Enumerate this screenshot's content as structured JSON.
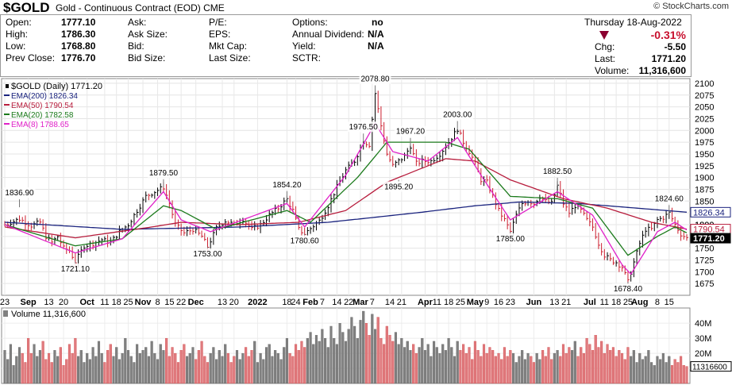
{
  "header": {
    "symbol": "$GOLD",
    "subtitle": "Gold - Continuous Contract (EOD)  CME",
    "brand": "© StockCharts.com"
  },
  "quote": {
    "open_label": "Open:",
    "open": "1777.10",
    "high_label": "High:",
    "high": "1786.30",
    "low_label": "Low:",
    "low": "1768.80",
    "prev_label": "Prev Close:",
    "prev": "1776.70",
    "ask_label": "Ask:",
    "asksize_label": "Ask Size:",
    "bid_label": "Bid:",
    "bidsize_label": "Bid Size:",
    "pe_label": "P/E:",
    "eps_label": "EPS:",
    "mktcap_label": "Mkt Cap:",
    "lastsize_label": "Last Size:",
    "options_label": "Options:",
    "options": "no",
    "div_label": "Annual Dividend:",
    "div": "N/A",
    "yield_label": "Yield:",
    "yield": "N/A",
    "sctr_label": "SCTR:",
    "date": "Thursday  18-Aug-2022",
    "pct": "-0.31%",
    "chg_label": "Chg:",
    "chg": "-5.50",
    "last_label": "Last:",
    "last": "1771.20",
    "vol_label": "Volume:",
    "vol": "11,316,600"
  },
  "chart_data": {
    "type": "line",
    "legend": [
      {
        "text": "$GOLD (Daily) 1771.20",
        "color": "#000000"
      },
      {
        "text": "EMA(200) 1826.34",
        "color": "#1a237e"
      },
      {
        "text": "EMA(50) 1790.54",
        "color": "#b71c3c"
      },
      {
        "text": "EMA(20) 1782.58",
        "color": "#1b7a1b"
      },
      {
        "text": "EMA(8) 1788.65",
        "color": "#e020c8"
      }
    ],
    "ylim": [
      1650,
      2110
    ],
    "yticks": [
      1675,
      1700,
      1725,
      1750,
      1775,
      1800,
      1825,
      1850,
      1875,
      1900,
      1925,
      1950,
      1975,
      2000,
      2025,
      2050,
      2075,
      2100
    ],
    "price_path": [
      [
        0,
        1800
      ],
      [
        5,
        1812
      ],
      [
        9,
        1798
      ],
      [
        12,
        1805
      ],
      [
        14,
        1775
      ],
      [
        16,
        1762
      ],
      [
        18,
        1775
      ],
      [
        20,
        1750
      ],
      [
        22,
        1745
      ],
      [
        24,
        1721.1
      ],
      [
        27,
        1755
      ],
      [
        30,
        1760
      ],
      [
        33,
        1768
      ],
      [
        36,
        1762
      ],
      [
        39,
        1785
      ],
      [
        42,
        1800
      ],
      [
        45,
        1830
      ],
      [
        48,
        1860
      ],
      [
        51,
        1870
      ],
      [
        54,
        1879.5
      ],
      [
        56,
        1845
      ],
      [
        58,
        1800
      ],
      [
        61,
        1782
      ],
      [
        64,
        1790
      ],
      [
        67,
        1775
      ],
      [
        69,
        1753
      ],
      [
        72,
        1792
      ],
      [
        75,
        1808
      ],
      [
        78,
        1800
      ],
      [
        81,
        1812
      ],
      [
        84,
        1790
      ],
      [
        87,
        1800
      ],
      [
        90,
        1820
      ],
      [
        93,
        1835
      ],
      [
        96,
        1854.2
      ],
      [
        98,
        1830
      ],
      [
        100,
        1790
      ],
      [
        102,
        1780.6
      ],
      [
        104,
        1792
      ],
      [
        107,
        1808
      ],
      [
        110,
        1840
      ],
      [
        113,
        1880
      ],
      [
        116,
        1915
      ],
      [
        119,
        1935
      ],
      [
        122,
        1976.5
      ],
      [
        124,
        1970
      ],
      [
        126,
        2078.8
      ],
      [
        128,
        2010
      ],
      [
        130,
        1950
      ],
      [
        132,
        1925
      ],
      [
        134,
        1935
      ],
      [
        136,
        1945
      ],
      [
        138,
        1967.2
      ],
      [
        140,
        1930
      ],
      [
        142,
        1935
      ],
      [
        145,
        1935
      ],
      [
        148,
        1950
      ],
      [
        151,
        1975
      ],
      [
        154,
        2003
      ],
      [
        156,
        1975
      ],
      [
        158,
        1955
      ],
      [
        160,
        1930
      ],
      [
        162,
        1895
      ],
      [
        164,
        1890
      ],
      [
        166,
        1860
      ],
      [
        168,
        1830
      ],
      [
        170,
        1810
      ],
      [
        172,
        1785
      ],
      [
        174,
        1820
      ],
      [
        176,
        1845
      ],
      [
        178,
        1850
      ],
      [
        180,
        1845
      ],
      [
        182,
        1860
      ],
      [
        184,
        1850
      ],
      [
        186,
        1845
      ],
      [
        188,
        1882.5
      ],
      [
        190,
        1845
      ],
      [
        192,
        1825
      ],
      [
        194,
        1840
      ],
      [
        196,
        1830
      ],
      [
        198,
        1810
      ],
      [
        200,
        1795
      ],
      [
        202,
        1760
      ],
      [
        204,
        1735
      ],
      [
        206,
        1725
      ],
      [
        208,
        1720
      ],
      [
        210,
        1710
      ],
      [
        212,
        1678.4
      ],
      [
        214,
        1720
      ],
      [
        216,
        1760
      ],
      [
        218,
        1790
      ],
      [
        220,
        1790
      ],
      [
        222,
        1810
      ],
      [
        224,
        1815
      ],
      [
        226,
        1824.6
      ],
      [
        228,
        1800
      ],
      [
        230,
        1780
      ],
      [
        232,
        1771.2
      ]
    ],
    "ema200": [
      [
        0,
        1805
      ],
      [
        40,
        1790
      ],
      [
        80,
        1795
      ],
      [
        110,
        1805
      ],
      [
        140,
        1825
      ],
      [
        160,
        1840
      ],
      [
        175,
        1848
      ],
      [
        195,
        1845
      ],
      [
        215,
        1835
      ],
      [
        232,
        1826.34
      ]
    ],
    "ema50": [
      [
        0,
        1795
      ],
      [
        24,
        1772
      ],
      [
        50,
        1795
      ],
      [
        60,
        1805
      ],
      [
        80,
        1800
      ],
      [
        100,
        1805
      ],
      [
        116,
        1830
      ],
      [
        130,
        1890
      ],
      [
        150,
        1940
      ],
      [
        160,
        1935
      ],
      [
        172,
        1895
      ],
      [
        190,
        1855
      ],
      [
        205,
        1835
      ],
      [
        220,
        1805
      ],
      [
        232,
        1790.54
      ]
    ],
    "ema20": [
      [
        0,
        1800
      ],
      [
        24,
        1755
      ],
      [
        40,
        1770
      ],
      [
        54,
        1840
      ],
      [
        60,
        1830
      ],
      [
        72,
        1790
      ],
      [
        96,
        1830
      ],
      [
        104,
        1805
      ],
      [
        120,
        1900
      ],
      [
        130,
        1975
      ],
      [
        150,
        1975
      ],
      [
        158,
        1960
      ],
      [
        172,
        1860
      ],
      [
        188,
        1855
      ],
      [
        200,
        1835
      ],
      [
        212,
        1735
      ],
      [
        222,
        1775
      ],
      [
        228,
        1795
      ],
      [
        232,
        1782.58
      ]
    ],
    "ema8": [
      [
        0,
        1800
      ],
      [
        24,
        1740
      ],
      [
        40,
        1770
      ],
      [
        54,
        1870
      ],
      [
        60,
        1810
      ],
      [
        70,
        1785
      ],
      [
        96,
        1845
      ],
      [
        102,
        1795
      ],
      [
        116,
        1905
      ],
      [
        126,
        2015
      ],
      [
        132,
        1955
      ],
      [
        144,
        1935
      ],
      [
        154,
        1985
      ],
      [
        162,
        1905
      ],
      [
        172,
        1810
      ],
      [
        188,
        1870
      ],
      [
        200,
        1820
      ],
      [
        210,
        1715
      ],
      [
        213,
        1695
      ],
      [
        222,
        1785
      ],
      [
        228,
        1805
      ],
      [
        232,
        1788.65
      ]
    ],
    "annotations": [
      {
        "x": 5,
        "y": 1836.9,
        "text": "1836.90",
        "pos": "above"
      },
      {
        "x": 24,
        "y": 1721.1,
        "text": "1721.10",
        "pos": "below"
      },
      {
        "x": 54,
        "y": 1879.5,
        "text": "1879.50",
        "pos": "above"
      },
      {
        "x": 69,
        "y": 1753,
        "text": "1753.00",
        "pos": "below"
      },
      {
        "x": 96,
        "y": 1854.2,
        "text": "1854.20",
        "pos": "above"
      },
      {
        "x": 102,
        "y": 1780.6,
        "text": "1780.60",
        "pos": "below"
      },
      {
        "x": 122,
        "y": 1976.5,
        "text": "1976.50",
        "pos": "above"
      },
      {
        "x": 126,
        "y": 2078.8,
        "text": "2078.80",
        "pos": "above"
      },
      {
        "x": 138,
        "y": 1967.2,
        "text": "1967.20",
        "pos": "above"
      },
      {
        "x": 134,
        "y": 1895.2,
        "text": "1895.20",
        "pos": "below"
      },
      {
        "x": 154,
        "y": 2003,
        "text": "2003.00",
        "pos": "above"
      },
      {
        "x": 172,
        "y": 1785,
        "text": "1785.00",
        "pos": "below"
      },
      {
        "x": 188,
        "y": 1882.5,
        "text": "1882.50",
        "pos": "above"
      },
      {
        "x": 212,
        "y": 1678.4,
        "text": "1678.40",
        "pos": "below"
      },
      {
        "x": 226,
        "y": 1824.6,
        "text": "1824.60",
        "pos": "above"
      }
    ],
    "right_labels": [
      {
        "y": 1826.34,
        "text": "1826.34",
        "color": "#1a237e"
      },
      {
        "y": 1800,
        "text": "1800",
        "color": "#ffffff"
      },
      {
        "y": 1790.54,
        "text": "1790.54",
        "color": "#b71c3c"
      },
      {
        "y": 1771.2,
        "text": "1771.20",
        "color": "#000000"
      }
    ],
    "xticks": [
      {
        "i": 0,
        "text": "23"
      },
      {
        "i": 8,
        "text": "Sep"
      },
      {
        "i": 15,
        "text": "13"
      },
      {
        "i": 20,
        "text": "20"
      },
      {
        "i": 28,
        "text": "Oct"
      },
      {
        "i": 34,
        "text": "11"
      },
      {
        "i": 38,
        "text": "18"
      },
      {
        "i": 42,
        "text": "25"
      },
      {
        "i": 47,
        "text": "Nov"
      },
      {
        "i": 52,
        "text": "8"
      },
      {
        "i": 56,
        "text": "15"
      },
      {
        "i": 60,
        "text": "22"
      },
      {
        "i": 65,
        "text": "Dec"
      },
      {
        "i": 74,
        "text": "13"
      },
      {
        "i": 78,
        "text": "20"
      },
      {
        "i": 86,
        "text": "2022"
      },
      {
        "i": 96,
        "text": "18"
      },
      {
        "i": 99,
        "text": "24"
      },
      {
        "i": 104,
        "text": "Feb"
      },
      {
        "i": 108,
        "text": "7"
      },
      {
        "i": 113,
        "text": "14"
      },
      {
        "i": 117,
        "text": "22"
      },
      {
        "i": 121,
        "text": "Mar"
      },
      {
        "i": 125,
        "text": "7"
      },
      {
        "i": 131,
        "text": "14"
      },
      {
        "i": 135,
        "text": "21"
      },
      {
        "i": 143,
        "text": "Apr"
      },
      {
        "i": 147,
        "text": "11"
      },
      {
        "i": 151,
        "text": "18"
      },
      {
        "i": 155,
        "text": "25"
      },
      {
        "i": 160,
        "text": "May"
      },
      {
        "i": 164,
        "text": "9"
      },
      {
        "i": 168,
        "text": "16"
      },
      {
        "i": 172,
        "text": "23"
      },
      {
        "i": 180,
        "text": "Jun"
      },
      {
        "i": 187,
        "text": "13"
      },
      {
        "i": 191,
        "text": "21"
      },
      {
        "i": 199,
        "text": "Jul"
      },
      {
        "i": 204,
        "text": "11"
      },
      {
        "i": 208,
        "text": "18"
      },
      {
        "i": 212,
        "text": "25"
      },
      {
        "i": 216,
        "text": "Aug"
      },
      {
        "i": 222,
        "text": "8"
      },
      {
        "i": 226,
        "text": "15"
      }
    ],
    "n_bars": 233,
    "volume": {
      "legend": "Volume 11,316,600",
      "ylim": [
        0,
        48
      ],
      "ticks": [
        {
          "v": 10,
          "text": "10M"
        },
        {
          "v": 20,
          "text": "20M"
        },
        {
          "v": 30,
          "text": "30M"
        },
        {
          "v": 40,
          "text": "40M"
        }
      ],
      "current_label": "11316600",
      "current": 11.3,
      "values": [
        22,
        16,
        26,
        12,
        18,
        24,
        20,
        14,
        30,
        20,
        26,
        18,
        22,
        28,
        16,
        20,
        14,
        22,
        18,
        24,
        12,
        16,
        26,
        20,
        30,
        18,
        22,
        14,
        20,
        16,
        24,
        18,
        28,
        20,
        14,
        22,
        26,
        18,
        24,
        16,
        20,
        30,
        22,
        18,
        14,
        26,
        20,
        22,
        24,
        18,
        28,
        20,
        16,
        26,
        22,
        30,
        18,
        24,
        20,
        14,
        22,
        26,
        18,
        20,
        24,
        16,
        22,
        28,
        18,
        14,
        20,
        24,
        16,
        22,
        18,
        26,
        20,
        14,
        18,
        22,
        16,
        20,
        24,
        18,
        22,
        28,
        14,
        20,
        16,
        24,
        26,
        18,
        22,
        20,
        16,
        24,
        30,
        20,
        18,
        26,
        22,
        28,
        24,
        30,
        34,
        26,
        32,
        28,
        36,
        30,
        24,
        38,
        30,
        26,
        40,
        34,
        28,
        36,
        44,
        38,
        30,
        42,
        48,
        40,
        32,
        46,
        36,
        44,
        30,
        26,
        38,
        32,
        28,
        34,
        26,
        30,
        24,
        28,
        22,
        26,
        20,
        24,
        30,
        22,
        26,
        18,
        28,
        24,
        20,
        26,
        22,
        30,
        24,
        18,
        28,
        22,
        26,
        20,
        24,
        16,
        28,
        22,
        18,
        26,
        20,
        24,
        22,
        18,
        20,
        16,
        24,
        18,
        22,
        20,
        14,
        18,
        22,
        16,
        20,
        18,
        14,
        20,
        16,
        22,
        18,
        24,
        16,
        20,
        22,
        18,
        26,
        20,
        24,
        22,
        28,
        18,
        24,
        20,
        30,
        26,
        22,
        32,
        24,
        28,
        20,
        26,
        22,
        24,
        18,
        22,
        20,
        16,
        24,
        18,
        22,
        14,
        20,
        16,
        18,
        22,
        14,
        12,
        18,
        16,
        20,
        14,
        18,
        12,
        16,
        14,
        18,
        12,
        11.3
      ]
    }
  }
}
